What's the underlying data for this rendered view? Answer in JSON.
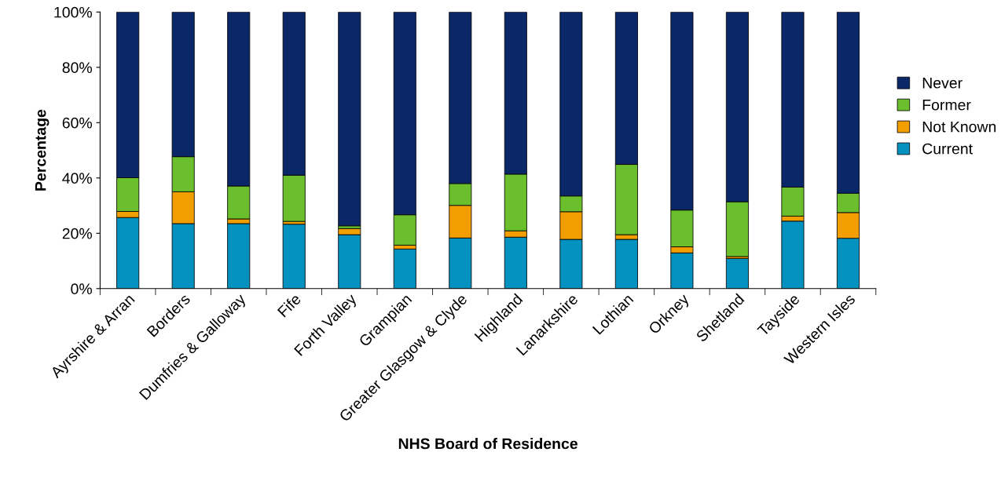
{
  "chart_data": {
    "type": "bar",
    "stacked": true,
    "xlabel": "NHS Board of Residence",
    "ylabel": "Percentage",
    "categories": [
      "Ayrshire & Arran",
      "Borders",
      "Dumfries & Galloway",
      "Fife",
      "Forth Valley",
      "Grampian",
      "Greater Glasgow & Clyde",
      "Highland",
      "Lanarkshire",
      "Lothian",
      "Orkney",
      "Shetland",
      "Tayside",
      "Western Isles"
    ],
    "series": [
      {
        "name": "Current",
        "color": "#0391bf",
        "values": [
          25.7,
          23.5,
          23.5,
          23.3,
          19.5,
          14.3,
          18.3,
          18.6,
          17.8,
          17.8,
          12.9,
          10.9,
          24.4,
          18.2
        ]
      },
      {
        "name": "Not Known",
        "color": "#f29e00",
        "values": [
          2.2,
          11.5,
          1.7,
          1.0,
          2.2,
          1.4,
          11.8,
          2.3,
          10.0,
          1.7,
          2.2,
          0.7,
          1.8,
          9.3
        ]
      },
      {
        "name": "Former",
        "color": "#6bbf2c",
        "values": [
          12.2,
          12.7,
          11.9,
          16.7,
          1.0,
          11.0,
          7.9,
          20.5,
          5.7,
          25.4,
          13.3,
          19.8,
          10.5,
          7.0
        ]
      },
      {
        "name": "Never",
        "color": "#0a2868",
        "values": [
          59.9,
          52.3,
          62.9,
          59.0,
          77.3,
          73.3,
          62.0,
          58.6,
          66.5,
          55.1,
          71.6,
          68.6,
          63.3,
          65.5
        ]
      }
    ],
    "ylim": [
      0,
      100
    ],
    "yticks": [
      {
        "value": 0,
        "label": "0%"
      },
      {
        "value": 20,
        "label": "20%"
      },
      {
        "value": 40,
        "label": "40%"
      },
      {
        "value": 60,
        "label": "60%"
      },
      {
        "value": 80,
        "label": "80%"
      },
      {
        "value": 100,
        "label": "100%"
      }
    ],
    "legend": "right",
    "grid": false
  }
}
